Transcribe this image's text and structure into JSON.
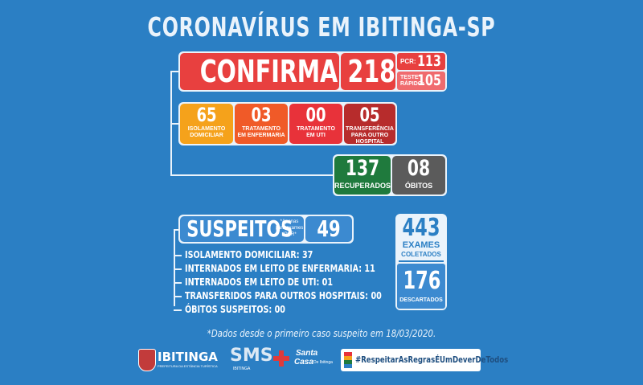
{
  "title": "CORONAVÍRUS EM IBITINGA-SP",
  "confirmed": {
    "label": "CONFIRMADOS",
    "value": "218",
    "pcr_label": "PCR:",
    "pcr_value": "113",
    "rapid_label_1": "TESTE",
    "rapid_label_2": "RÁPIDO:",
    "rapid_value": "105"
  },
  "status": [
    {
      "value": "65",
      "line1": "ISOLAMENTO",
      "line2": "DOMICILIAR",
      "color": "#f5a21b"
    },
    {
      "value": "03",
      "line1": "TRATAMENTO",
      "line2": "EM ENFERMARIA",
      "color": "#f05a28"
    },
    {
      "value": "00",
      "line1": "TRATAMENTO",
      "line2": "EM UTI",
      "color": "#e8323a"
    },
    {
      "value": "05",
      "line1": "TRANSFERÊNCIA",
      "line2": "PARA OUTRO HOSPITAL",
      "color": "#b72c2c"
    }
  ],
  "recovered": {
    "value": "137",
    "label": "RECUPERADOS",
    "color": "#1f7a3d"
  },
  "deaths": {
    "value": "08",
    "label": "ÓBITOS",
    "color": "#5b5b5b"
  },
  "suspects": {
    "label": "SUSPEITOS",
    "note_1": "*Apenas",
    "note_2": "para exames",
    "note_3": "*PCR*",
    "value": "49",
    "items": [
      "ISOLAMENTO DOMICILIAR: 37",
      "INTERNADOS EM LEITO DE ENFERMARIA: 11",
      "INTERNADOS EM LEITO DE UTI: 01",
      "TRANSFERIDOS PARA OUTROS HOSPITAIS: 00",
      "ÓBITOS SUSPEITOS: 00"
    ]
  },
  "exams": {
    "collected_value": "443",
    "collected_label_1": "EXAMES",
    "collected_label_2": "COLETADOS",
    "discarded_value": "176",
    "discarded_label": "DESCARTADOS"
  },
  "footnote": "*Dados desde o primeiro caso suspeito em 18/03/2020.",
  "logos": {
    "ibitinga": "IBITINGA",
    "ibitinga_sub": "PREFEITURA DA ESTÂNCIA TURÍSTICA",
    "sms": "SMS",
    "sms_sub": "IBITINGA",
    "santa_casa_1": "Santa",
    "santa_casa_2": "Casa",
    "santa_casa_3": "De Ibitinga",
    "hashtag": "#RespeitarAsRegrasÉUmDeverDeTodos"
  }
}
